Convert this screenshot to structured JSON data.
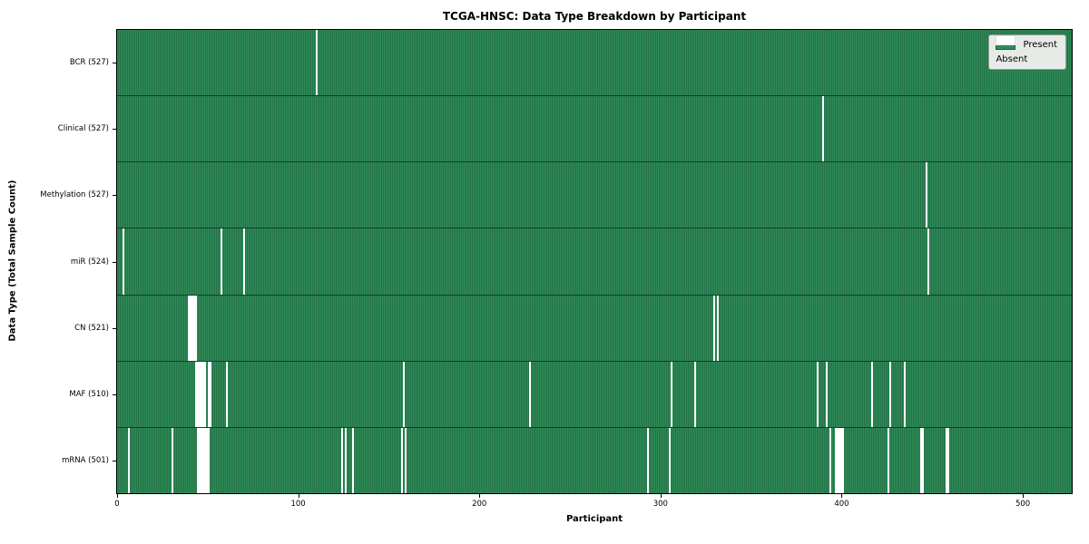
{
  "chart_data": {
    "type": "heatmap",
    "title": "TCGA-HNSC: Data Type Breakdown by Participant",
    "xlabel": "Participant",
    "ylabel": "Data Type (Total Sample Count)",
    "n_participants": 528,
    "xlim": [
      -0.5,
      527.5
    ],
    "x_ticks": [
      0,
      100,
      200,
      300,
      400,
      500
    ],
    "grid": false,
    "legend_position": "upper right",
    "legend": [
      {
        "label": "Present",
        "color": "#2e8b57"
      },
      {
        "label": "Absent",
        "color": "#ffffff"
      }
    ],
    "colors": {
      "present": "#2e8b57",
      "present_edge": "#1b5e38",
      "absent": "#ffffff",
      "legend_bg": "#e7ebe7"
    },
    "rows": [
      {
        "label": "BCR (527)",
        "present_count": 527,
        "absent_participants": [
          110
        ]
      },
      {
        "label": "Clinical (527)",
        "present_count": 527,
        "absent_participants": [
          390
        ]
      },
      {
        "label": "Methylation (527)",
        "present_count": 527,
        "absent_participants": [
          447
        ]
      },
      {
        "label": "miR (524)",
        "present_count": 524,
        "absent_participants": [
          3,
          57,
          70,
          448
        ]
      },
      {
        "label": "CN (521)",
        "present_count": 521,
        "absent_participants": [
          39,
          40,
          41,
          42,
          43,
          330,
          332
        ]
      },
      {
        "label": "MAF (510)",
        "present_count": 510,
        "absent_participants": [
          43,
          44,
          45,
          46,
          47,
          48,
          50,
          51,
          60,
          158,
          228,
          306,
          319,
          387,
          392,
          417,
          427,
          435
        ]
      },
      {
        "label": "mRNA (501)",
        "present_count": 501,
        "absent_participants": [
          6,
          30,
          44,
          45,
          46,
          47,
          48,
          49,
          50,
          124,
          126,
          130,
          157,
          159,
          293,
          305,
          394,
          397,
          398,
          399,
          400,
          401,
          426,
          444,
          445,
          458,
          459
        ]
      }
    ]
  }
}
